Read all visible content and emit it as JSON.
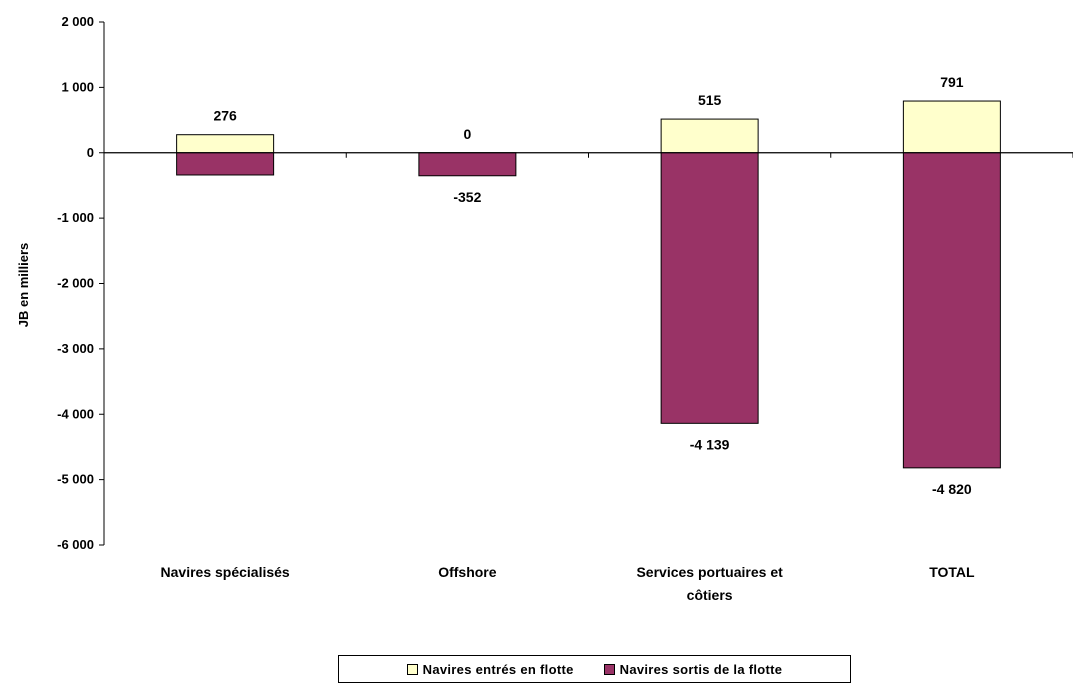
{
  "chart_data": {
    "type": "bar",
    "categories": [
      "Navires spécialisés",
      "Offshore",
      "Services portuaires et côtiers",
      "TOTAL"
    ],
    "series": [
      {
        "name": "Navires entrés en flotte",
        "values": [
          276,
          0,
          515,
          791
        ],
        "color": "#FFFFCC"
      },
      {
        "name": "Navires sortis de la flotte",
        "values": [
          -340,
          -352,
          -4139,
          -4820
        ],
        "color": "#993366"
      }
    ],
    "data_labels": {
      "positive": [
        "276",
        "0",
        "515",
        "791"
      ],
      "negative": [
        "",
        "-352",
        "-4 139",
        "-4 820"
      ]
    },
    "ylabel": "JB en milliers",
    "ylim": [
      -6000,
      2000
    ],
    "yticks": [
      2000,
      1000,
      0,
      -1000,
      -2000,
      -3000,
      -4000,
      -5000,
      -6000
    ],
    "ytick_labels": [
      "2 000",
      "1 000",
      "0",
      "-1 000",
      "-2 000",
      "-3 000",
      "-4 000",
      "-5 000",
      "-6 000"
    ],
    "grid": false,
    "legend_position": "bottom"
  }
}
